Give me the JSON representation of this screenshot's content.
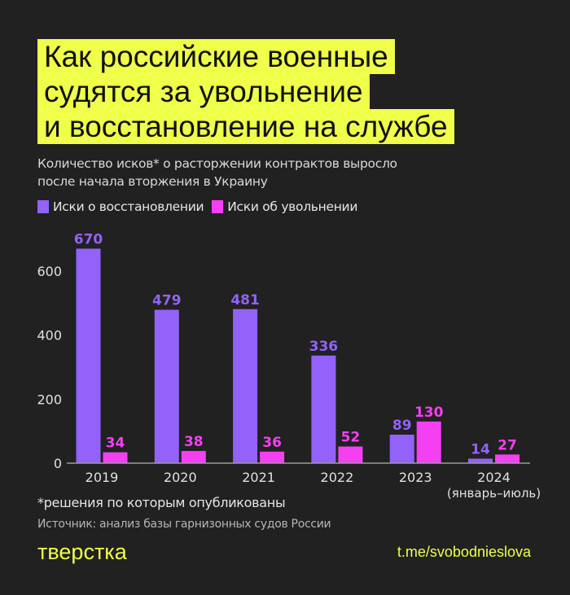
{
  "title_lines": [
    "Как российские военные",
    "судятся за увольнение",
    "и восстановление на службе"
  ],
  "subtitle_lines": [
    "Количество исков* о расторжении контрактов выросло",
    "после начала вторжения в Украину"
  ],
  "footnote": "*решения по которым опубликованы",
  "source": "Источник: анализ базы гарнизонных судов России",
  "logo": "тверстка",
  "link": "t.me/svobodnieslova",
  "colors": {
    "background": "#212121",
    "title_bg": "#efff4a",
    "reinstatement": "#9262fa",
    "dismissal": "#f53ff2"
  },
  "chart_data": {
    "type": "bar",
    "categories": [
      "2019",
      "2020",
      "2021",
      "2022",
      "2023",
      "2024"
    ],
    "category_sublabels": [
      "",
      "",
      "",
      "",
      "",
      "(январь–июль)"
    ],
    "series": [
      {
        "name": "Иски о восстановлении",
        "values": [
          670,
          479,
          481,
          336,
          89,
          14
        ],
        "color": "#9262fa"
      },
      {
        "name": "Иски об увольнении",
        "values": [
          34,
          38,
          36,
          52,
          130,
          27
        ],
        "color": "#f53ff2"
      }
    ],
    "yticks": [
      0,
      200,
      400,
      600
    ],
    "ylim": [
      0,
      700
    ],
    "grid": false,
    "legend_position": "top-left",
    "data_labels": true
  }
}
